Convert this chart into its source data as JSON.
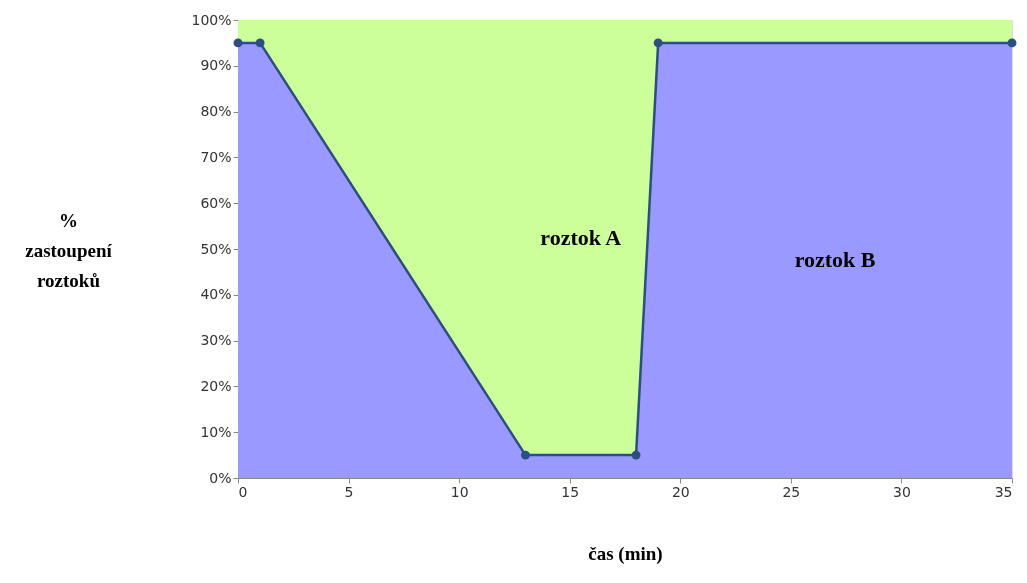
{
  "chart_data": {
    "type": "area",
    "stacked": true,
    "xlabel": "čas (min)",
    "ylabel": "% zastoupení roztoků",
    "x": [
      0,
      1,
      13,
      18,
      19,
      35
    ],
    "series": [
      {
        "name": "roztok B",
        "color": "#9999ff",
        "values": [
          95,
          95,
          5,
          5,
          95,
          95
        ],
        "marker": "circle"
      },
      {
        "name": "roztok A",
        "color": "#ccff99",
        "values": [
          5,
          5,
          95,
          95,
          5,
          5
        ],
        "marker": "none"
      }
    ],
    "xlim": [
      0,
      35
    ],
    "xticks": [
      0,
      5,
      10,
      15,
      20,
      25,
      30,
      35
    ],
    "ylim": [
      0,
      100
    ],
    "yticks": [
      {
        "value": 0,
        "label": "0%"
      },
      {
        "value": 10,
        "label": "10%"
      },
      {
        "value": 20,
        "label": "20%"
      },
      {
        "value": 30,
        "label": "30%"
      },
      {
        "value": 40,
        "label": "40%"
      },
      {
        "value": 50,
        "label": "50%"
      },
      {
        "value": 60,
        "label": "60%"
      },
      {
        "value": 70,
        "label": "70%"
      },
      {
        "value": 80,
        "label": "80%"
      },
      {
        "value": 90,
        "label": "90%"
      },
      {
        "value": 100,
        "label": "100%"
      }
    ],
    "grid": false
  }
}
